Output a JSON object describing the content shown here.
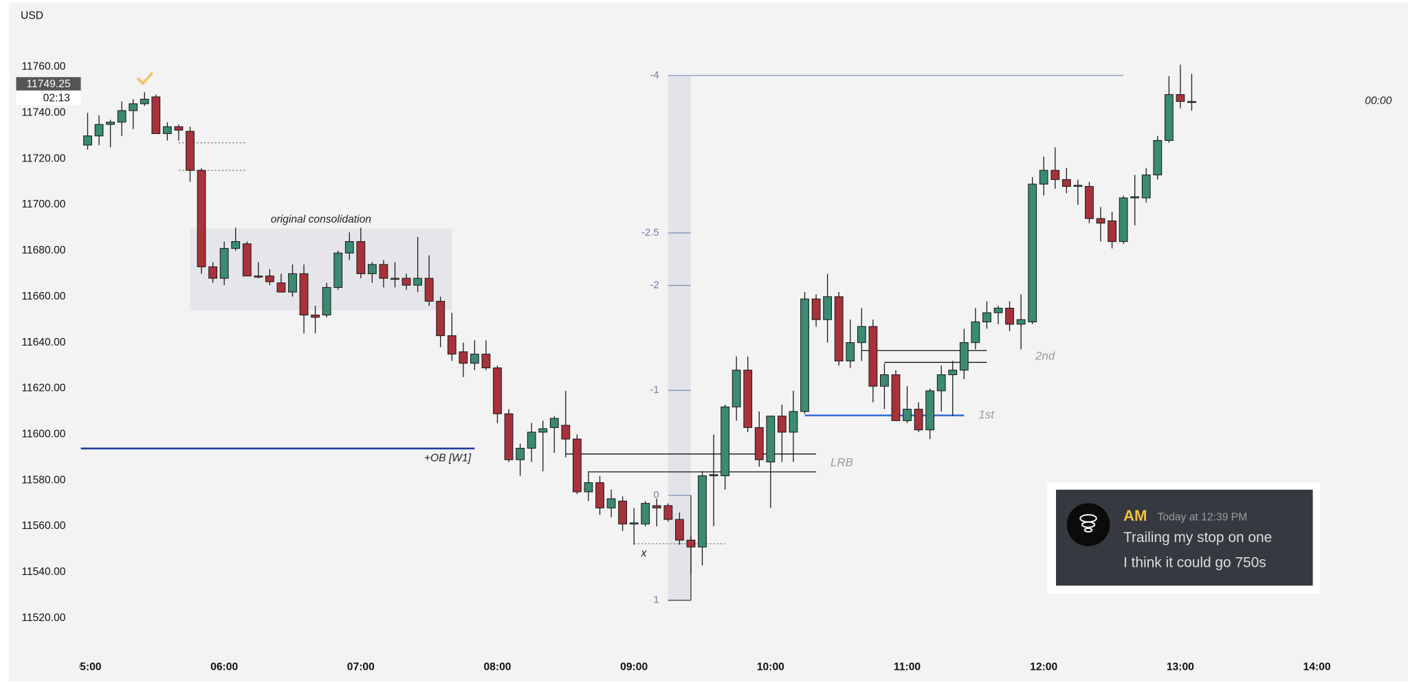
{
  "header": {
    "currency": "USD",
    "price_tag": "11749.25",
    "countdown": "02:13",
    "right_time": "00:00"
  },
  "message": {
    "author": "AM",
    "time": "Today at 12:39 PM",
    "lines": [
      "Trailing my stop on one",
      "I think it could go 750s"
    ]
  },
  "chart_data": {
    "type": "candlestick",
    "up_color": "#3b8a72",
    "down_color": "#a8323b",
    "xlim": [
      "04:57",
      "14:40"
    ],
    "xticks": [
      "05:00",
      "06:00",
      "07:00",
      "08:00",
      "09:00",
      "10:00",
      "11:00",
      "12:00",
      "13:00",
      "14:00"
    ],
    "ylim": [
      11508,
      11788
    ],
    "yticks": [
      {
        "value": 11520,
        "label": "11520.00"
      },
      {
        "value": 11540,
        "label": "11540.00"
      },
      {
        "value": 11560,
        "label": "11560.00"
      },
      {
        "value": 11580,
        "label": "11580.00"
      },
      {
        "value": 11600,
        "label": "11600.00"
      },
      {
        "value": 11620,
        "label": "11620.00"
      },
      {
        "value": 11640,
        "label": "11640.00"
      },
      {
        "value": 11660,
        "label": "11660.00"
      },
      {
        "value": 11680,
        "label": "11680.00"
      },
      {
        "value": 11700,
        "label": "11700.00"
      },
      {
        "value": 11720,
        "label": "11720.00"
      },
      {
        "value": 11740,
        "label": "11740.00"
      },
      {
        "value": 11760,
        "label": "11760.00"
      }
    ],
    "grid": false,
    "x": [
      "05:00",
      "05:05",
      "05:10",
      "05:15",
      "05:20",
      "05:25",
      "05:30",
      "05:35",
      "05:40",
      "05:45",
      "05:50",
      "05:55",
      "06:00",
      "06:05",
      "06:10",
      "06:15",
      "06:20",
      "06:25",
      "06:30",
      "06:35",
      "06:40",
      "06:45",
      "06:50",
      "06:55",
      "07:00",
      "07:05",
      "07:10",
      "07:15",
      "07:20",
      "07:25",
      "07:30",
      "07:35",
      "07:40",
      "07:45",
      "07:50",
      "07:55",
      "08:00",
      "08:05",
      "08:10",
      "08:15",
      "08:20",
      "08:25",
      "08:30",
      "08:35",
      "08:40",
      "08:45",
      "08:50",
      "08:55",
      "09:00",
      "09:05",
      "09:10",
      "09:15",
      "09:20",
      "09:25",
      "09:30",
      "09:35",
      "09:40",
      "09:45",
      "09:50",
      "09:55",
      "10:00",
      "10:05",
      "10:10",
      "10:15",
      "10:20",
      "10:25",
      "10:30",
      "10:35",
      "10:40",
      "10:45",
      "10:50",
      "10:55",
      "11:00",
      "11:05",
      "11:10",
      "11:15",
      "11:20",
      "11:25",
      "11:30",
      "11:35",
      "11:40",
      "11:45",
      "11:50",
      "11:55",
      "12:00",
      "12:05",
      "12:10",
      "12:15",
      "12:20",
      "12:25",
      "12:30",
      "12:35",
      "12:40",
      "12:45",
      "12:50",
      "12:55",
      "13:00",
      "13:05"
    ],
    "open": [
      11726,
      11730,
      11735,
      11736,
      11741,
      11744,
      11747,
      11731,
      11734,
      11732,
      11715,
      11673,
      11668,
      11681,
      11683,
      11669,
      11669,
      11666,
      11662,
      11670,
      11652,
      11652,
      11664,
      11679,
      11684,
      11670,
      11674,
      11668,
      11668,
      11665,
      11668,
      11658,
      11643,
      11636,
      11631,
      11635,
      11629,
      11609,
      11589,
      11594,
      11601,
      11603,
      11604,
      11598,
      11575,
      11579,
      11568,
      11571,
      11561,
      11561,
      11569,
      11569,
      11563,
      11554,
      11551,
      11582,
      11582,
      11612,
      11628,
      11603,
      11588,
      11608,
      11601,
      11610,
      11659,
      11650,
      11660,
      11632,
      11640,
      11647,
      11621,
      11626,
      11606,
      11611,
      11602,
      11619,
      11626,
      11628,
      11640,
      11649,
      11653,
      11655,
      11648,
      11649,
      11709,
      11715,
      11711,
      11708,
      11708,
      11694,
      11693,
      11684,
      11703,
      11703,
      11713,
      11728,
      11748,
      11745
    ],
    "high": [
      11740,
      11739,
      11737,
      11745,
      11746,
      11749,
      11748,
      11736,
      11735,
      11734,
      11716,
      11675,
      11684,
      11690,
      11684,
      11675,
      11672,
      11670,
      11674,
      11674,
      11656,
      11666,
      11680,
      11688,
      11690,
      11675,
      11676,
      11675,
      11670,
      11686,
      11678,
      11660,
      11653,
      11640,
      11641,
      11641,
      11630,
      11611,
      11596,
      11605,
      11606,
      11608,
      11619,
      11600,
      11584,
      11582,
      11576,
      11573,
      11568,
      11571,
      11572,
      11570,
      11566,
      11556,
      11584,
      11600,
      11613,
      11634,
      11634,
      11610,
      11608,
      11613,
      11619,
      11662,
      11661,
      11670,
      11662,
      11650,
      11655,
      11650,
      11631,
      11628,
      11621,
      11614,
      11620,
      11630,
      11632,
      11646,
      11655,
      11658,
      11656,
      11658,
      11661,
      11712,
      11721,
      11725,
      11716,
      11711,
      11710,
      11699,
      11697,
      11704,
      11713,
      11716,
      11730,
      11756,
      11761,
      11757
    ],
    "low": [
      11724,
      11726,
      11725,
      11730,
      11733,
      11743,
      11731,
      11728,
      11728,
      11710,
      11670,
      11666,
      11665,
      11680,
      11669,
      11668,
      11665,
      11662,
      11660,
      11644,
      11644,
      11651,
      11663,
      11676,
      11668,
      11666,
      11664,
      11664,
      11663,
      11662,
      11656,
      11638,
      11632,
      11625,
      11628,
      11628,
      11605,
      11588,
      11582,
      11588,
      11584,
      11592,
      11590,
      11574,
      11571,
      11565,
      11564,
      11558,
      11552,
      11560,
      11560,
      11562,
      11552,
      11539,
      11543,
      11560,
      11576,
      11606,
      11601,
      11586,
      11568,
      11588,
      11588,
      11609,
      11647,
      11640,
      11630,
      11629,
      11632,
      11614,
      11611,
      11606,
      11605,
      11601,
      11598,
      11610,
      11608,
      11624,
      11637,
      11646,
      11648,
      11645,
      11637,
      11648,
      11704,
      11707,
      11705,
      11700,
      11692,
      11684,
      11681,
      11683,
      11691,
      11701,
      11711,
      11727,
      11742,
      11741
    ],
    "close": [
      11730,
      11735,
      11736,
      11741,
      11744,
      11746,
      11731,
      11734,
      11732.5,
      11715,
      11673,
      11668,
      11681,
      11684,
      11669,
      11668.5,
      11666.5,
      11662,
      11670,
      11652,
      11651,
      11664,
      11679,
      11684,
      11670,
      11674,
      11668,
      11668,
      11665,
      11668,
      11658,
      11643,
      11635,
      11631,
      11635,
      11629,
      11609,
      11589,
      11594,
      11601,
      11602.5,
      11607,
      11598,
      11575,
      11579,
      11568,
      11572,
      11561,
      11561.5,
      11570,
      11568,
      11563,
      11554,
      11551,
      11582,
      11582.5,
      11612,
      11628,
      11603,
      11589,
      11608,
      11601,
      11610,
      11659,
      11650,
      11660,
      11632,
      11640,
      11647,
      11621,
      11626,
      11606,
      11611,
      11602,
      11619,
      11626,
      11628,
      11640,
      11649,
      11653,
      11655,
      11648,
      11650,
      11709,
      11715,
      11711,
      11708,
      11708.5,
      11694,
      11692,
      11684,
      11703,
      11703.5,
      11713,
      11728,
      11748,
      11745,
      11745
    ],
    "annotations": [
      {
        "kind": "box",
        "label": "original consolidation",
        "from": "05:45",
        "to": "07:40",
        "top": 11689.6,
        "bottom": 11654,
        "color": "#e6e6ea"
      },
      {
        "kind": "lines",
        "color": "#888888",
        "dash": true,
        "lines": [
          {
            "price": 11727,
            "from": "05:40",
            "to": "06:10"
          },
          {
            "price": 11715,
            "from": "05:40",
            "to": "06:10"
          }
        ]
      },
      {
        "kind": "lines",
        "color": "#1f3c9e",
        "dash": false,
        "label": "+OB [W1]",
        "label_side": "below-end",
        "lines": [
          {
            "price": 11593.9,
            "to": "07:50"
          }
        ]
      },
      {
        "kind": "lines",
        "color": "#888888",
        "dash": true,
        "label": "x",
        "label_side": "below-start",
        "lines": [
          {
            "price": 11552.4,
            "from": "09:00",
            "to": "09:40"
          }
        ]
      },
      {
        "kind": "lines",
        "color": "#111111",
        "dash": false,
        "label": "LRB",
        "label_side": "right",
        "lines": [
          {
            "price": 11591.5,
            "from": "08:30",
            "to": "10:20"
          },
          {
            "price": 11583.7,
            "from": "08:40",
            "to": "10:20"
          }
        ]
      },
      {
        "kind": "lines",
        "color": "#3a6fd8",
        "dash": false,
        "label": "1st",
        "label_side": "right",
        "lines": [
          {
            "price": 11608.3,
            "from": "10:15",
            "to": "11:25"
          }
        ]
      },
      {
        "kind": "lines",
        "color": "#111111",
        "dash": false,
        "label": "2nd",
        "label_side": "right-far",
        "lines": [
          {
            "price": 11636.5,
            "from": "10:40",
            "to": "11:35"
          },
          {
            "price": 11631.4,
            "from": "10:50",
            "to": "11:35"
          }
        ]
      }
    ],
    "fib": {
      "levels": [
        -4,
        -2.5,
        -2,
        -1,
        0,
        1
      ],
      "price_at_0": 11573.5,
      "price_at_1": 11527.8,
      "from": "09:15",
      "to": "09:25",
      "extended_level": -4,
      "extend_to": "12:35",
      "color": "#7f93b5"
    }
  }
}
